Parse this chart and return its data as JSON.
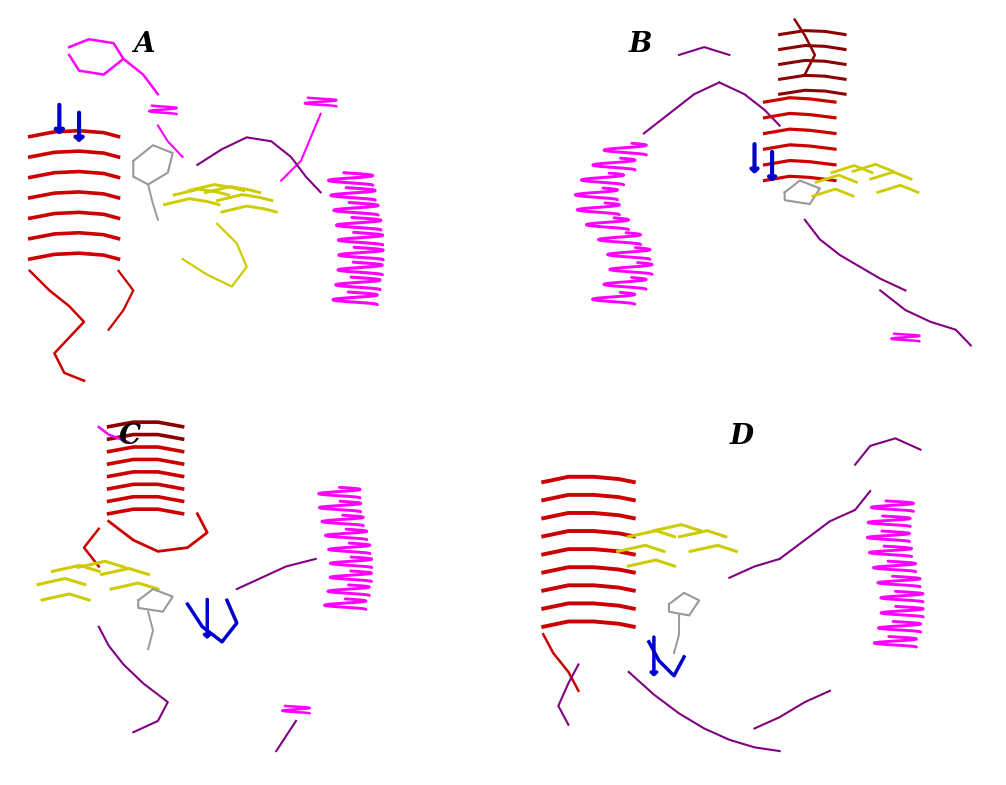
{
  "title": "",
  "background_color": "#ffffff",
  "labels": [
    "A",
    "B",
    "C",
    "D"
  ],
  "label_fontsize": 20,
  "label_fontweight": "bold",
  "fig_width": 10.06,
  "fig_height": 7.85,
  "magenta": "#FF00FF",
  "purple": "#800080",
  "red": "#CC0000",
  "yellow": "#CCCC00",
  "blue": "#0000CC",
  "gray": "#999999",
  "dark_red": "#8B0000"
}
